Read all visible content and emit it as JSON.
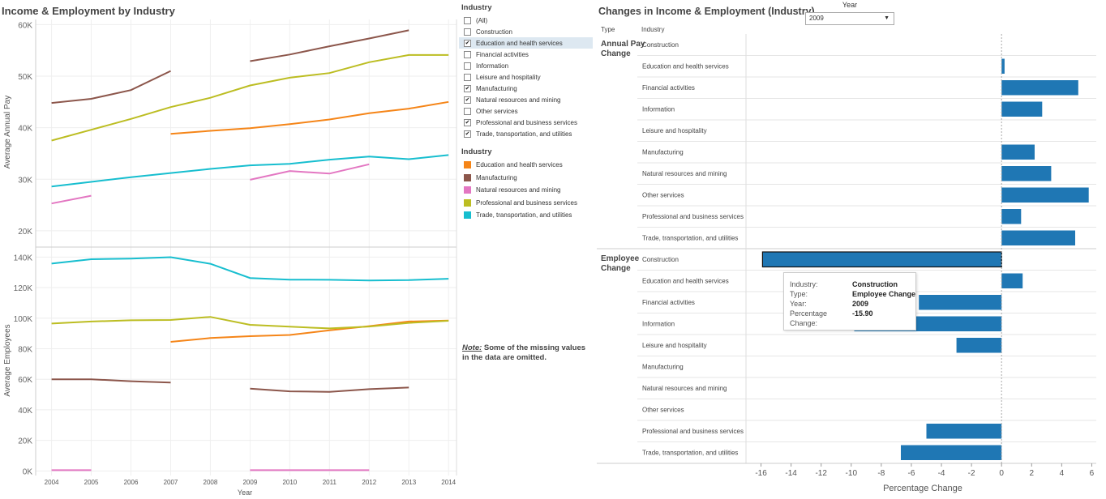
{
  "left_panel": {
    "title": "Income & Employment by Industry",
    "top_ylabel": "Average Annual Pay",
    "bottom_ylabel": "Average Employees",
    "xlabel": "Year"
  },
  "filter": {
    "title": "Industry",
    "items": [
      {
        "label": "(All)",
        "checked": false,
        "highlight": false
      },
      {
        "label": "Construction",
        "checked": false,
        "highlight": false
      },
      {
        "label": "Education and health services",
        "checked": true,
        "highlight": true
      },
      {
        "label": "Financial activities",
        "checked": false,
        "highlight": false
      },
      {
        "label": "Information",
        "checked": false,
        "highlight": false
      },
      {
        "label": "Leisure and hospitality",
        "checked": false,
        "highlight": false
      },
      {
        "label": "Manufacturing",
        "checked": true,
        "highlight": false
      },
      {
        "label": "Natural resources and mining",
        "checked": true,
        "highlight": false
      },
      {
        "label": "Other services",
        "checked": false,
        "highlight": false
      },
      {
        "label": "Professional and business services",
        "checked": true,
        "highlight": false
      },
      {
        "label": "Trade, transportation, and utilities",
        "checked": true,
        "highlight": false
      }
    ]
  },
  "legend": {
    "title": "Industry",
    "items": [
      {
        "label": "Education and health services",
        "color": "#f58518"
      },
      {
        "label": "Manufacturing",
        "color": "#8c564b"
      },
      {
        "label": "Natural resources and mining",
        "color": "#e377c2"
      },
      {
        "label": "Professional and business services",
        "color": "#bcbd22"
      },
      {
        "label": "Trade, transportation, and utilities",
        "color": "#17becf"
      }
    ]
  },
  "note": {
    "label": "Note:",
    "text": "Some of the missing values in the data are omitted."
  },
  "right_panel": {
    "title": "Changes in Income & Employment (Industry)",
    "col_type": "Type",
    "col_industry": "Industry",
    "xlabel": "Percentage Change"
  },
  "year_control": {
    "label": "Year",
    "value": "2009"
  },
  "tooltip": {
    "rows": [
      {
        "key": "Industry:",
        "value": "Construction"
      },
      {
        "key": "Type:",
        "value": "Employee Change"
      },
      {
        "key": "Year:",
        "value": "2009"
      },
      {
        "key": "Percentage Change:",
        "value": "-15.90"
      }
    ]
  },
  "chart_data": [
    {
      "type": "line",
      "name": "Average Annual Pay",
      "x": [
        2004,
        2005,
        2006,
        2007,
        2008,
        2009,
        2010,
        2011,
        2012,
        2013,
        2014
      ],
      "ylim": [
        17000,
        61000
      ],
      "yticks": [
        20000,
        30000,
        40000,
        50000,
        60000
      ],
      "yticklabels": [
        "20K",
        "30K",
        "40K",
        "50K",
        "60K"
      ],
      "series": [
        {
          "name": "Education and health services",
          "color": "#f58518",
          "values": [
            null,
            null,
            null,
            38800,
            39400,
            39900,
            40700,
            41600,
            42800,
            43700,
            45000
          ]
        },
        {
          "name": "Manufacturing",
          "color": "#8c564b",
          "values": [
            44800,
            45600,
            47300,
            51000,
            null,
            52900,
            54200,
            55800,
            57300,
            58900,
            null
          ]
        },
        {
          "name": "Natural resources and mining",
          "color": "#e377c2",
          "values": [
            25300,
            26800,
            null,
            null,
            null,
            29900,
            31600,
            31100,
            32900,
            null,
            null
          ]
        },
        {
          "name": "Professional and business services",
          "color": "#bcbd22",
          "values": [
            37500,
            39600,
            41700,
            44000,
            45800,
            48200,
            49700,
            50600,
            52700,
            54100,
            54100
          ]
        },
        {
          "name": "Trade, transportation, and utilities",
          "color": "#17becf",
          "values": [
            28600,
            29500,
            30400,
            31200,
            32000,
            32700,
            33000,
            33800,
            34400,
            33900,
            34700
          ]
        }
      ]
    },
    {
      "type": "line",
      "name": "Average Employees",
      "x": [
        2004,
        2005,
        2006,
        2007,
        2008,
        2009,
        2010,
        2011,
        2012,
        2013,
        2014
      ],
      "ylim": [
        -3000,
        146000
      ],
      "yticks": [
        0,
        20000,
        40000,
        60000,
        80000,
        100000,
        120000,
        140000
      ],
      "yticklabels": [
        "0K",
        "20K",
        "40K",
        "60K",
        "80K",
        "100K",
        "120K",
        "140K"
      ],
      "xticklabels": [
        "2004",
        "2005",
        "2006",
        "2007",
        "2008",
        "2009",
        "2010",
        "2011",
        "2012",
        "2013",
        "2014"
      ],
      "series": [
        {
          "name": "Education and health services",
          "color": "#f58518",
          "values": [
            null,
            null,
            null,
            84500,
            87000,
            88200,
            89000,
            92000,
            94800,
            97800,
            98400
          ]
        },
        {
          "name": "Manufacturing",
          "color": "#8c564b",
          "values": [
            60000,
            60000,
            58700,
            57800,
            null,
            53900,
            52100,
            51800,
            53500,
            54600,
            null
          ]
        },
        {
          "name": "Natural resources and mining",
          "color": "#e377c2",
          "values": [
            500,
            500,
            null,
            null,
            null,
            500,
            500,
            500,
            500,
            null,
            null
          ]
        },
        {
          "name": "Professional and business services",
          "color": "#bcbd22",
          "values": [
            96500,
            97800,
            98600,
            98800,
            100800,
            95600,
            94400,
            93300,
            94500,
            96900,
            98300
          ]
        },
        {
          "name": "Trade, transportation, and utilities",
          "color": "#17becf",
          "values": [
            135700,
            138600,
            139000,
            139900,
            135600,
            126300,
            125200,
            125100,
            124700,
            124900,
            125800
          ]
        }
      ]
    },
    {
      "type": "bar",
      "orientation": "horizontal",
      "xlim": [
        -17,
        6.3
      ],
      "xticks": [
        -16,
        -14,
        -12,
        -10,
        -8,
        -6,
        -4,
        -2,
        0,
        2,
        4,
        6
      ],
      "color": "#1f77b4",
      "groups": [
        {
          "label_lines": [
            "Annual Pay",
            "Change"
          ],
          "categories": [
            "Construction",
            "Education and health services",
            "Financial activities",
            "Information",
            "Leisure and hospitality",
            "Manufacturing",
            "Natural resources and mining",
            "Other services",
            "Professional and business services",
            "Trade, transportation, and utilities"
          ],
          "values": [
            null,
            0.2,
            5.1,
            2.7,
            null,
            2.2,
            3.3,
            5.8,
            1.3,
            4.9
          ]
        },
        {
          "label_lines": [
            "Employee",
            "Change"
          ],
          "categories": [
            "Construction",
            "Education and health services",
            "Financial activities",
            "Information",
            "Leisure and hospitality",
            "Manufacturing",
            "Natural resources and mining",
            "Other services",
            "Professional and business services",
            "Trade, transportation, and utilities"
          ],
          "values": [
            -15.9,
            1.4,
            -5.5,
            -9.8,
            -3.0,
            null,
            null,
            null,
            -5.0,
            -6.7
          ]
        }
      ]
    }
  ]
}
